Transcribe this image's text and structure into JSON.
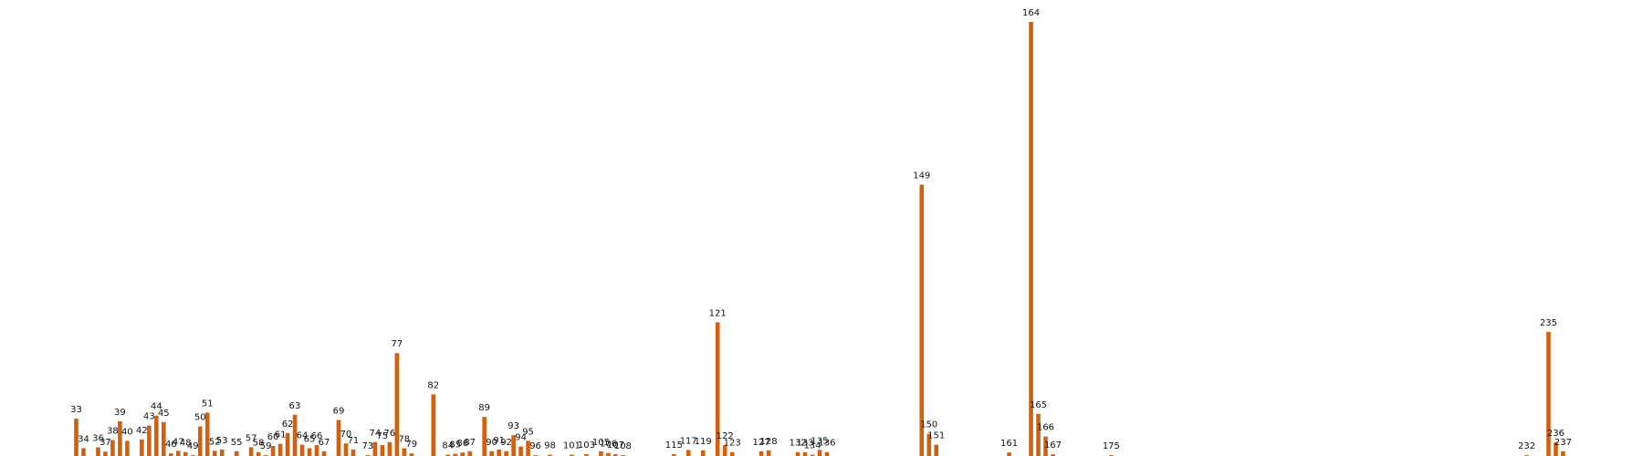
{
  "chart_data": {
    "type": "bar",
    "title": "",
    "xlabel": "",
    "ylabel": "",
    "grid": false,
    "color": "#d35f0f",
    "x_range": [
      32,
      238
    ],
    "ylim": [
      0,
      1000
    ],
    "data_labels_shown": true,
    "points": [
      {
        "x": 33,
        "y": 86
      },
      {
        "x": 34,
        "y": 18
      },
      {
        "x": 36,
        "y": 20
      },
      {
        "x": 37,
        "y": 10
      },
      {
        "x": 38,
        "y": 37
      },
      {
        "x": 39,
        "y": 80
      },
      {
        "x": 40,
        "y": 35
      },
      {
        "x": 42,
        "y": 38
      },
      {
        "x": 43,
        "y": 70
      },
      {
        "x": 44,
        "y": 93
      },
      {
        "x": 45,
        "y": 78
      },
      {
        "x": 46,
        "y": 6
      },
      {
        "x": 47,
        "y": 12
      },
      {
        "x": 48,
        "y": 9
      },
      {
        "x": 49,
        "y": 2
      },
      {
        "x": 50,
        "y": 68
      },
      {
        "x": 51,
        "y": 100
      },
      {
        "x": 52,
        "y": 12
      },
      {
        "x": 53,
        "y": 15
      },
      {
        "x": 55,
        "y": 11
      },
      {
        "x": 57,
        "y": 20
      },
      {
        "x": 58,
        "y": 9
      },
      {
        "x": 59,
        "y": 2
      },
      {
        "x": 60,
        "y": 23
      },
      {
        "x": 61,
        "y": 28
      },
      {
        "x": 62,
        "y": 53
      },
      {
        "x": 63,
        "y": 95
      },
      {
        "x": 64,
        "y": 26
      },
      {
        "x": 65,
        "y": 18
      },
      {
        "x": 66,
        "y": 25
      },
      {
        "x": 67,
        "y": 11
      },
      {
        "x": 69,
        "y": 83
      },
      {
        "x": 70,
        "y": 29
      },
      {
        "x": 71,
        "y": 15
      },
      {
        "x": 73,
        "y": 2
      },
      {
        "x": 74,
        "y": 32
      },
      {
        "x": 75,
        "y": 25
      },
      {
        "x": 76,
        "y": 32
      },
      {
        "x": 77,
        "y": 237
      },
      {
        "x": 78,
        "y": 18
      },
      {
        "x": 79,
        "y": 6
      },
      {
        "x": 82,
        "y": 142
      },
      {
        "x": 84,
        "y": 3
      },
      {
        "x": 85,
        "y": 5
      },
      {
        "x": 86,
        "y": 8
      },
      {
        "x": 87,
        "y": 11
      },
      {
        "x": 89,
        "y": 90
      },
      {
        "x": 90,
        "y": 11
      },
      {
        "x": 91,
        "y": 15
      },
      {
        "x": 92,
        "y": 11
      },
      {
        "x": 93,
        "y": 48
      },
      {
        "x": 94,
        "y": 22
      },
      {
        "x": 95,
        "y": 35
      },
      {
        "x": 96,
        "y": 2
      },
      {
        "x": 98,
        "y": 3
      },
      {
        "x": 101,
        "y": 3
      },
      {
        "x": 103,
        "y": 4
      },
      {
        "x": 105,
        "y": 11
      },
      {
        "x": 106,
        "y": 7
      },
      {
        "x": 107,
        "y": 4
      },
      {
        "x": 108,
        "y": 2
      },
      {
        "x": 115,
        "y": 4
      },
      {
        "x": 117,
        "y": 14
      },
      {
        "x": 119,
        "y": 13
      },
      {
        "x": 121,
        "y": 308
      },
      {
        "x": 122,
        "y": 25
      },
      {
        "x": 123,
        "y": 9
      },
      {
        "x": 127,
        "y": 11
      },
      {
        "x": 128,
        "y": 13
      },
      {
        "x": 132,
        "y": 9
      },
      {
        "x": 133,
        "y": 9
      },
      {
        "x": 134,
        "y": 3
      },
      {
        "x": 135,
        "y": 14
      },
      {
        "x": 136,
        "y": 9
      },
      {
        "x": 149,
        "y": 625
      },
      {
        "x": 150,
        "y": 51
      },
      {
        "x": 151,
        "y": 26
      },
      {
        "x": 161,
        "y": 8
      },
      {
        "x": 164,
        "y": 1000
      },
      {
        "x": 165,
        "y": 97
      },
      {
        "x": 166,
        "y": 45
      },
      {
        "x": 167,
        "y": 4
      },
      {
        "x": 175,
        "y": 2
      },
      {
        "x": 232,
        "y": 2
      },
      {
        "x": 235,
        "y": 286
      },
      {
        "x": 236,
        "y": 32
      },
      {
        "x": 237,
        "y": 11
      }
    ]
  }
}
